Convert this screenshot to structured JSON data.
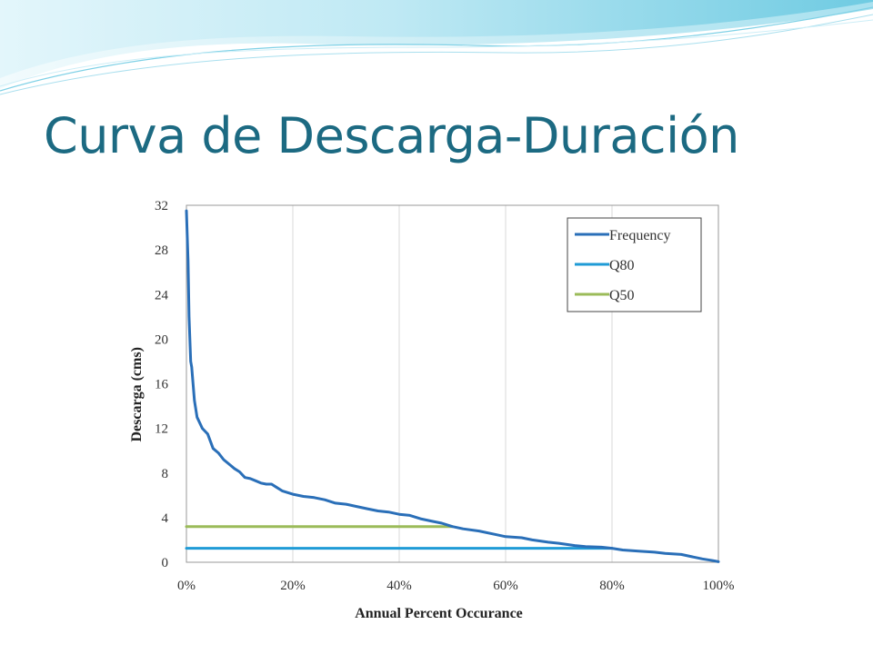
{
  "slide": {
    "title": "Curva de Descarga-Duración"
  },
  "colors": {
    "title": "#1c6a82",
    "frequency": "#2a6fb8",
    "q80": "#1f9bd6",
    "q50": "#9bbb59",
    "grid": "#d9d9d9",
    "banner_light": "#c9ecf6",
    "banner_mid": "#7fd1e6"
  },
  "chart_data": {
    "type": "line",
    "xlabel": "Annual Percent Occurance",
    "ylabel": "Descarga (cms)",
    "xlim": [
      0,
      100
    ],
    "ylim": [
      0,
      32
    ],
    "x_ticks": [
      0,
      20,
      40,
      60,
      80,
      100
    ],
    "x_tick_labels": [
      "0%",
      "20%",
      "40%",
      "60%",
      "80%",
      "100%"
    ],
    "y_ticks": [
      0,
      4,
      8,
      12,
      16,
      20,
      24,
      28,
      32
    ],
    "y_tick_labels": [
      "0",
      "4",
      "8",
      "12",
      "16",
      "20",
      "24",
      "28",
      "32"
    ],
    "grid": "vertical",
    "legend_position": "top-right",
    "series": [
      {
        "name": "Frequency",
        "color": "#2a6fb8",
        "x": [
          0,
          0.3,
          0.5,
          0.8,
          1,
          1.5,
          2,
          3,
          4,
          5,
          6,
          7,
          8,
          9,
          10,
          11,
          12,
          13,
          14,
          15,
          16,
          17,
          18,
          20,
          22,
          24,
          26,
          28,
          30,
          32,
          34,
          36,
          38,
          40,
          42,
          44,
          46,
          48,
          50,
          52,
          55,
          58,
          60,
          63,
          65,
          68,
          70,
          73,
          75,
          78,
          80,
          82,
          85,
          88,
          90,
          93,
          95,
          97,
          99,
          100
        ],
        "y": [
          31.5,
          27,
          22,
          18,
          17.5,
          14.5,
          13,
          12,
          11.5,
          10.2,
          9.8,
          9.2,
          8.8,
          8.4,
          8.1,
          7.6,
          7.5,
          7.3,
          7.1,
          7.0,
          7.0,
          6.7,
          6.4,
          6.1,
          5.9,
          5.8,
          5.6,
          5.3,
          5.2,
          5.0,
          4.8,
          4.6,
          4.5,
          4.3,
          4.2,
          3.9,
          3.7,
          3.5,
          3.2,
          3.0,
          2.8,
          2.5,
          2.3,
          2.2,
          2.0,
          1.8,
          1.7,
          1.5,
          1.4,
          1.35,
          1.25,
          1.1,
          1.0,
          0.9,
          0.8,
          0.7,
          0.5,
          0.3,
          0.15,
          0.05
        ]
      },
      {
        "name": "Q80",
        "color": "#1f9bd6",
        "x": [
          0,
          80
        ],
        "y": [
          1.25,
          1.25
        ]
      },
      {
        "name": "Q50",
        "color": "#9bbb59",
        "x": [
          0,
          50
        ],
        "y": [
          3.2,
          3.2
        ]
      }
    ]
  }
}
